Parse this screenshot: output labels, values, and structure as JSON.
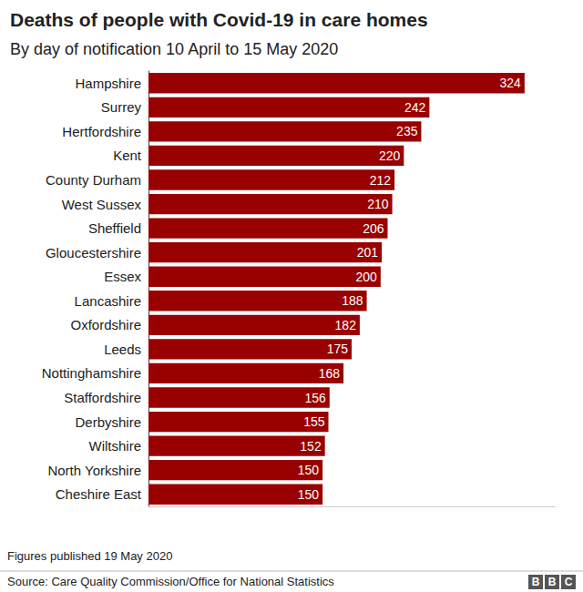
{
  "chart_data": {
    "type": "bar",
    "orientation": "horizontal",
    "title": "Deaths of people with Covid-19 in care homes",
    "subtitle": "By day of notification 10 April to 15 May 2020",
    "categories": [
      "Hampshire",
      "Surrey",
      "Hertfordshire",
      "Kent",
      "County Durham",
      "West Sussex",
      "Sheffield",
      "Gloucestershire",
      "Essex",
      "Lancashire",
      "Oxfordshire",
      "Leeds",
      "Nottinghamshire",
      "Staffordshire",
      "Derbyshire",
      "Wiltshire",
      "North Yorkshire",
      "Cheshire East"
    ],
    "values": [
      324,
      242,
      235,
      220,
      212,
      210,
      206,
      201,
      200,
      188,
      182,
      175,
      168,
      156,
      155,
      152,
      150,
      150
    ],
    "color": "#990000",
    "xlim": [
      0,
      350
    ],
    "grid": false,
    "data_labels": true,
    "tick_labels": "y",
    "notes": [
      "Figures published 19 May 2020"
    ],
    "source": "Source: Care Quality Commission/Office for National Statistics",
    "logo": "BBC"
  }
}
